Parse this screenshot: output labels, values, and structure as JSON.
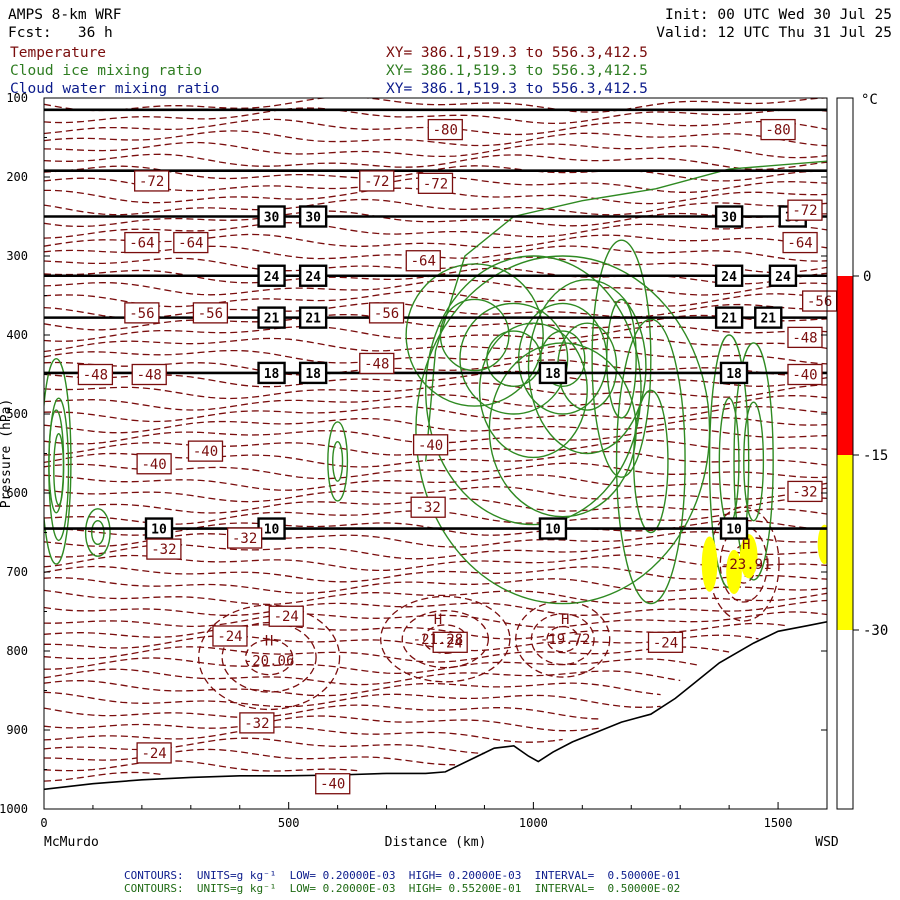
{
  "header": {
    "model": "AMPS 8-km WRF",
    "fcst": "Fcst:   36 h",
    "init": "Init: 00 UTC Wed 30 Jul 25",
    "valid": "Valid: 12 UTC Thu 31 Jul 25",
    "fields": [
      {
        "name": "Temperature",
        "xy": "XY= 386.1,519.3 to 556.3,412.5"
      },
      {
        "name": "Cloud ice mixing ratio",
        "xy": "XY= 386.1,519.3 to 556.3,412.5"
      },
      {
        "name": "Cloud water mixing ratio",
        "xy": "XY= 386.1,519.3 to 556.3,412.5"
      }
    ]
  },
  "footer": {
    "line1": "CONTOURS:  UNITS=g kg⁻¹  LOW= 0.20000E-03  HIGH= 0.20000E-03  INTERVAL=  0.50000E-01",
    "line2": "CONTOURS:  UNITS=g kg⁻¹  LOW= 0.20000E-03  HIGH= 0.55200E-01  INTERVAL=  0.50000E-02"
  },
  "colors": {
    "temperature": "#7a0d0d",
    "cloud_ice": "#2f8a22",
    "cloud_water": "#0c1c8c",
    "terrain": "#000000",
    "cb_red": "#ff0000",
    "cb_yellow": "#ffff00"
  },
  "chart_data": {
    "type": "cross-section",
    "xlabel": "Distance (km)",
    "x_ticks": [
      0,
      500,
      1000,
      1500
    ],
    "x_range": [
      0,
      1600
    ],
    "x_left_label": "McMurdo",
    "x_right_label": "WSD",
    "ylabel": "Pressure (hPa)",
    "y_ticks": [
      100,
      200,
      300,
      400,
      500,
      600,
      700,
      800,
      900,
      1000
    ],
    "y_range": [
      100,
      1000
    ],
    "y_inverted": true,
    "temperature_labels": [
      {
        "x": 820,
        "y": 140,
        "text": "-80"
      },
      {
        "x": 1500,
        "y": 140,
        "text": "-80"
      },
      {
        "x": 220,
        "y": 205,
        "text": "-72"
      },
      {
        "x": 680,
        "y": 205,
        "text": "-72"
      },
      {
        "x": 800,
        "y": 208,
        "text": "-72"
      },
      {
        "x": 1555,
        "y": 242,
        "text": "-72"
      },
      {
        "x": 200,
        "y": 283,
        "text": "-64"
      },
      {
        "x": 300,
        "y": 283,
        "text": "-64"
      },
      {
        "x": 775,
        "y": 306,
        "text": "-64"
      },
      {
        "x": 1545,
        "y": 283,
        "text": "-64"
      },
      {
        "x": 200,
        "y": 372,
        "text": "-56"
      },
      {
        "x": 340,
        "y": 372,
        "text": "-56"
      },
      {
        "x": 700,
        "y": 372,
        "text": "-56"
      },
      {
        "x": 1585,
        "y": 357,
        "text": "-56"
      },
      {
        "x": 105,
        "y": 450,
        "text": "-48"
      },
      {
        "x": 215,
        "y": 450,
        "text": "-48"
      },
      {
        "x": 680,
        "y": 436,
        "text": "-48"
      },
      {
        "x": 1555,
        "y": 403,
        "text": "-48"
      },
      {
        "x": 1555,
        "y": 450,
        "text": "-40"
      },
      {
        "x": 790,
        "y": 539,
        "text": "-40"
      },
      {
        "x": 225,
        "y": 563,
        "text": "-40"
      },
      {
        "x": 330,
        "y": 547,
        "text": "-40"
      },
      {
        "x": 785,
        "y": 618,
        "text": "-32"
      },
      {
        "x": 1555,
        "y": 598,
        "text": "-32"
      },
      {
        "x": 245,
        "y": 671,
        "text": "-32"
      },
      {
        "x": 410,
        "y": 657,
        "text": "-32"
      },
      {
        "x": 495,
        "y": 756,
        "text": "-24"
      },
      {
        "x": 380,
        "y": 781,
        "text": "-24"
      },
      {
        "x": 830,
        "y": 789,
        "text": "-24"
      },
      {
        "x": 1270,
        "y": 789,
        "text": "-24"
      },
      {
        "x": 435,
        "y": 891,
        "text": "-32"
      },
      {
        "x": 225,
        "y": 929,
        "text": "-24"
      },
      {
        "x": 590,
        "y": 968,
        "text": "-40"
      }
    ],
    "theta_lines": [
      {
        "level": 115,
        "labels": []
      },
      {
        "level": 192,
        "labels": []
      },
      {
        "level": 250,
        "labels": [
          {
            "x": 465,
            "text": "30"
          },
          {
            "x": 550,
            "text": "30"
          },
          {
            "x": 1400,
            "text": "30"
          },
          {
            "x": 1530,
            "text": "30"
          }
        ]
      },
      {
        "level": 325,
        "labels": [
          {
            "x": 465,
            "text": "24"
          },
          {
            "x": 550,
            "text": "24"
          },
          {
            "x": 1400,
            "text": "24"
          },
          {
            "x": 1510,
            "text": "24"
          }
        ]
      },
      {
        "level": 378,
        "labels": [
          {
            "x": 465,
            "text": "21"
          },
          {
            "x": 550,
            "text": "21"
          },
          {
            "x": 1400,
            "text": "21"
          },
          {
            "x": 1480,
            "text": "21"
          }
        ]
      },
      {
        "level": 448,
        "labels": [
          {
            "x": 465,
            "text": "18"
          },
          {
            "x": 550,
            "text": "18"
          },
          {
            "x": 1040,
            "text": "18"
          },
          {
            "x": 1410,
            "text": "18"
          }
        ]
      },
      {
        "level": 645,
        "labels": [
          {
            "x": 235,
            "text": "10"
          },
          {
            "x": 465,
            "text": "10"
          },
          {
            "x": 1040,
            "text": "10"
          },
          {
            "x": 1410,
            "text": "10"
          }
        ]
      }
    ],
    "extrema": [
      {
        "x": 460,
        "y": 808,
        "mark": "H",
        "value": "-20.06"
      },
      {
        "x": 805,
        "y": 781,
        "mark": "H",
        "value": "-21.28"
      },
      {
        "x": 1065,
        "y": 781,
        "mark": "H",
        "value": "-19.72"
      },
      {
        "x": 1435,
        "y": 686,
        "mark": "H",
        "value": "-23.91"
      }
    ],
    "colorbar": {
      "unit": "°C",
      "ticks": [
        "0",
        "-15",
        "-30"
      ],
      "segments": [
        {
          "from": "top",
          "to": "0",
          "color": "#ffffff"
        },
        {
          "from": "0",
          "to": "-15",
          "color": "#ff0000"
        },
        {
          "from": "-15",
          "to": "-30",
          "color": "#ffff00"
        },
        {
          "from": "-30",
          "to": "bottom",
          "color": "#ffffff"
        }
      ]
    },
    "legend": [
      "Temperature",
      "Cloud ice mixing ratio",
      "Cloud water mixing ratio"
    ]
  }
}
